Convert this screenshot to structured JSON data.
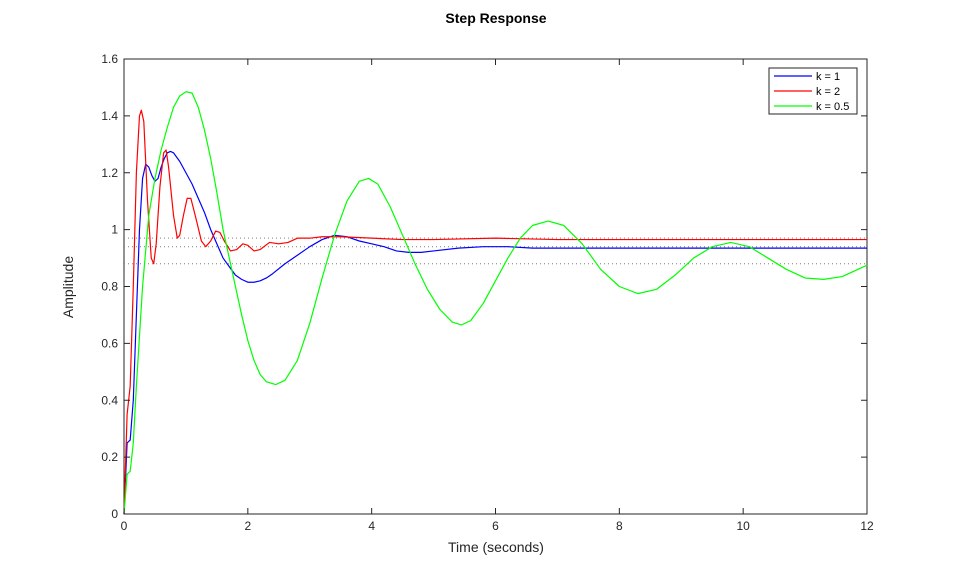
{
  "chart_data": {
    "type": "line",
    "title": "Step Response",
    "xlabel": "Time (seconds)",
    "ylabel": "Amplitude",
    "xlim": [
      0,
      12
    ],
    "ylim": [
      0,
      1.6
    ],
    "xticks": [
      "0",
      "2",
      "4",
      "6",
      "8",
      "10",
      "12"
    ],
    "yticks": [
      "0",
      "0.2",
      "0.4",
      "0.6",
      "0.8",
      "1",
      "1.2",
      "1.4",
      "1.6"
    ],
    "grid": false,
    "legend_position": "top-right",
    "reference_lines": [
      {
        "y": 0.97,
        "style": "dotted",
        "color": "#7f7f7f"
      },
      {
        "y": 0.94,
        "style": "dotted",
        "color": "#7f7f7f"
      },
      {
        "y": 0.88,
        "style": "dotted",
        "color": "#7f7f7f"
      }
    ],
    "series": [
      {
        "name": "k = 1",
        "color": "#0000ff",
        "points": [
          [
            0,
            0
          ],
          [
            0.05,
            0.25
          ],
          [
            0.1,
            0.26
          ],
          [
            0.15,
            0.4
          ],
          [
            0.2,
            0.7
          ],
          [
            0.25,
            1.0
          ],
          [
            0.3,
            1.18
          ],
          [
            0.35,
            1.23
          ],
          [
            0.4,
            1.22
          ],
          [
            0.45,
            1.19
          ],
          [
            0.5,
            1.17
          ],
          [
            0.55,
            1.18
          ],
          [
            0.6,
            1.22
          ],
          [
            0.65,
            1.25
          ],
          [
            0.7,
            1.27
          ],
          [
            0.75,
            1.275
          ],
          [
            0.8,
            1.27
          ],
          [
            0.9,
            1.24
          ],
          [
            1.0,
            1.2
          ],
          [
            1.1,
            1.16
          ],
          [
            1.2,
            1.11
          ],
          [
            1.3,
            1.06
          ],
          [
            1.4,
            1.0
          ],
          [
            1.5,
            0.95
          ],
          [
            1.6,
            0.9
          ],
          [
            1.7,
            0.87
          ],
          [
            1.8,
            0.84
          ],
          [
            1.9,
            0.825
          ],
          [
            2.0,
            0.815
          ],
          [
            2.1,
            0.815
          ],
          [
            2.2,
            0.82
          ],
          [
            2.3,
            0.83
          ],
          [
            2.4,
            0.845
          ],
          [
            2.6,
            0.88
          ],
          [
            2.8,
            0.91
          ],
          [
            3.0,
            0.94
          ],
          [
            3.2,
            0.965
          ],
          [
            3.4,
            0.98
          ],
          [
            3.6,
            0.975
          ],
          [
            3.8,
            0.96
          ],
          [
            4.0,
            0.95
          ],
          [
            4.2,
            0.94
          ],
          [
            4.4,
            0.925
          ],
          [
            4.6,
            0.92
          ],
          [
            4.8,
            0.92
          ],
          [
            5.0,
            0.925
          ],
          [
            5.4,
            0.935
          ],
          [
            5.8,
            0.94
          ],
          [
            6.2,
            0.94
          ],
          [
            6.6,
            0.935
          ],
          [
            7.0,
            0.935
          ],
          [
            8.0,
            0.935
          ],
          [
            9.0,
            0.935
          ],
          [
            10.0,
            0.935
          ],
          [
            11.0,
            0.935
          ],
          [
            12.0,
            0.935
          ]
        ]
      },
      {
        "name": "k = 2",
        "color": "#ff0000",
        "points": [
          [
            0,
            0
          ],
          [
            0.05,
            0.35
          ],
          [
            0.1,
            0.45
          ],
          [
            0.15,
            0.8
          ],
          [
            0.2,
            1.2
          ],
          [
            0.25,
            1.4
          ],
          [
            0.28,
            1.42
          ],
          [
            0.32,
            1.38
          ],
          [
            0.38,
            1.1
          ],
          [
            0.44,
            0.9
          ],
          [
            0.48,
            0.88
          ],
          [
            0.52,
            0.95
          ],
          [
            0.58,
            1.15
          ],
          [
            0.64,
            1.27
          ],
          [
            0.68,
            1.28
          ],
          [
            0.72,
            1.22
          ],
          [
            0.8,
            1.05
          ],
          [
            0.86,
            0.97
          ],
          [
            0.9,
            0.98
          ],
          [
            0.96,
            1.05
          ],
          [
            1.02,
            1.11
          ],
          [
            1.08,
            1.11
          ],
          [
            1.15,
            1.05
          ],
          [
            1.25,
            0.96
          ],
          [
            1.32,
            0.94
          ],
          [
            1.4,
            0.96
          ],
          [
            1.48,
            0.995
          ],
          [
            1.55,
            0.99
          ],
          [
            1.62,
            0.96
          ],
          [
            1.72,
            0.925
          ],
          [
            1.82,
            0.93
          ],
          [
            1.92,
            0.95
          ],
          [
            2.0,
            0.945
          ],
          [
            2.1,
            0.925
          ],
          [
            2.2,
            0.93
          ],
          [
            2.35,
            0.955
          ],
          [
            2.5,
            0.95
          ],
          [
            2.65,
            0.955
          ],
          [
            2.8,
            0.97
          ],
          [
            3.0,
            0.97
          ],
          [
            3.2,
            0.975
          ],
          [
            3.5,
            0.975
          ],
          [
            4.0,
            0.97
          ],
          [
            4.5,
            0.965
          ],
          [
            5.0,
            0.965
          ],
          [
            6.0,
            0.97
          ],
          [
            7.0,
            0.965
          ],
          [
            8.0,
            0.965
          ],
          [
            9.0,
            0.965
          ],
          [
            10.0,
            0.965
          ],
          [
            11.0,
            0.965
          ],
          [
            12.0,
            0.965
          ]
        ]
      },
      {
        "name": "k = 0.5",
        "color": "#00ff00",
        "points": [
          [
            0,
            0
          ],
          [
            0.05,
            0.14
          ],
          [
            0.1,
            0.15
          ],
          [
            0.15,
            0.25
          ],
          [
            0.2,
            0.45
          ],
          [
            0.3,
            0.8
          ],
          [
            0.4,
            1.05
          ],
          [
            0.5,
            1.18
          ],
          [
            0.6,
            1.28
          ],
          [
            0.7,
            1.36
          ],
          [
            0.8,
            1.43
          ],
          [
            0.9,
            1.47
          ],
          [
            1.0,
            1.485
          ],
          [
            1.1,
            1.48
          ],
          [
            1.2,
            1.43
          ],
          [
            1.3,
            1.35
          ],
          [
            1.4,
            1.25
          ],
          [
            1.5,
            1.13
          ],
          [
            1.6,
            1.0
          ],
          [
            1.7,
            0.9
          ],
          [
            1.8,
            0.8
          ],
          [
            1.9,
            0.7
          ],
          [
            2.0,
            0.61
          ],
          [
            2.1,
            0.54
          ],
          [
            2.2,
            0.49
          ],
          [
            2.3,
            0.465
          ],
          [
            2.45,
            0.455
          ],
          [
            2.6,
            0.47
          ],
          [
            2.8,
            0.54
          ],
          [
            3.0,
            0.67
          ],
          [
            3.2,
            0.83
          ],
          [
            3.4,
            0.98
          ],
          [
            3.6,
            1.1
          ],
          [
            3.8,
            1.17
          ],
          [
            3.95,
            1.18
          ],
          [
            4.1,
            1.16
          ],
          [
            4.3,
            1.08
          ],
          [
            4.5,
            0.98
          ],
          [
            4.7,
            0.88
          ],
          [
            4.9,
            0.79
          ],
          [
            5.1,
            0.72
          ],
          [
            5.3,
            0.675
          ],
          [
            5.45,
            0.665
          ],
          [
            5.6,
            0.68
          ],
          [
            5.8,
            0.74
          ],
          [
            6.0,
            0.82
          ],
          [
            6.2,
            0.9
          ],
          [
            6.4,
            0.97
          ],
          [
            6.6,
            1.015
          ],
          [
            6.85,
            1.03
          ],
          [
            7.1,
            1.015
          ],
          [
            7.4,
            0.95
          ],
          [
            7.7,
            0.86
          ],
          [
            8.0,
            0.8
          ],
          [
            8.3,
            0.775
          ],
          [
            8.6,
            0.79
          ],
          [
            8.9,
            0.84
          ],
          [
            9.2,
            0.9
          ],
          [
            9.5,
            0.94
          ],
          [
            9.8,
            0.955
          ],
          [
            10.1,
            0.94
          ],
          [
            10.4,
            0.9
          ],
          [
            10.7,
            0.86
          ],
          [
            11.0,
            0.83
          ],
          [
            11.3,
            0.825
          ],
          [
            11.6,
            0.835
          ],
          [
            12.0,
            0.875
          ]
        ]
      }
    ]
  }
}
